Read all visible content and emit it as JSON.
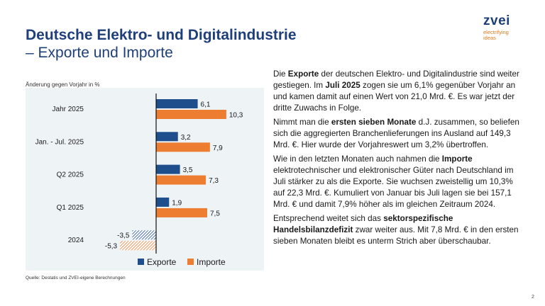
{
  "header": {
    "title": "Deutsche Elektro- und Digitalindustrie",
    "subtitle": "– Exporte und Importe"
  },
  "logo": {
    "mark": "zvei",
    "tagline_1": "electrifying",
    "tagline_2": "ideas"
  },
  "chart_caption": "Änderung gegen Vorjahr in %",
  "source": "Quelle: Destatis und ZVEI-eigene Berechnungen",
  "page_number": "2",
  "colors": {
    "exporte": "#1f4e8c",
    "importe": "#ed7d31",
    "panel": "#eef3f6",
    "title": "#1f3f7a"
  },
  "chart_data": {
    "type": "bar",
    "orientation": "horizontal",
    "categories": [
      "Jahr 2025",
      "Jan. - Jul. 2025",
      "Q2 2025",
      "Q1 2025",
      "2024"
    ],
    "series": [
      {
        "name": "Exporte",
        "values": [
          6.1,
          3.2,
          3.5,
          1.9,
          -3.5
        ],
        "labels": [
          "6,1",
          "3,2",
          "3,5",
          "1,9",
          "-3,5"
        ]
      },
      {
        "name": "Importe",
        "values": [
          10.3,
          7.9,
          7.3,
          7.5,
          -5.3
        ],
        "labels": [
          "10,3",
          "7,9",
          "7,3",
          "7,5",
          "-5,3"
        ]
      }
    ],
    "hatched_category": "2024",
    "legend_position": "bottom",
    "grid": false
  },
  "text": {
    "p1_a": "Die ",
    "p1_b": "Exporte",
    "p1_c": " der deutschen Elektro- und Digitalindustrie sind weiter gestiegen. Im ",
    "p1_d": "Juli 2025",
    "p1_e": " zogen sie um 6,1% gegenüber Vorjahr an und kamen damit auf einen Wert von 21,0 Mrd. €. Es war jetzt der dritte Zuwachs in Folge.",
    "p2_a": "Nimmt man die ",
    "p2_b": "ersten sieben Monate",
    "p2_c": " d.J. zusammen, so beliefen sich die aggregierten Branchenlieferungen ins Ausland auf 149,3 Mrd. €. Hier wurde der Vorjahreswert um 3,2% übertroffen.",
    "p3_a": "Wie in den letzten Monaten auch nahmen die ",
    "p3_b": "Importe",
    "p3_c": " elektrotechnischer und elektronischer Güter nach Deutschland im Juli stärker zu als die Exporte. Sie wuchsen zweistellig um 10,3% auf 22,3 Mrd. €. Kumuliert von Januar bis Juli lagen sie bei 157,1 Mrd. € und damit 7,9% höher als im gleichen Zeitraum 2024.",
    "p4_a": "Entsprechend weitet sich das ",
    "p4_b": "sektorspezifische Handelsbilanzdefizit",
    "p4_c": " zwar weiter aus. Mit 7,8 Mrd. € in den ersten sieben Monaten bleibt es unterm Strich aber überschaubar."
  }
}
